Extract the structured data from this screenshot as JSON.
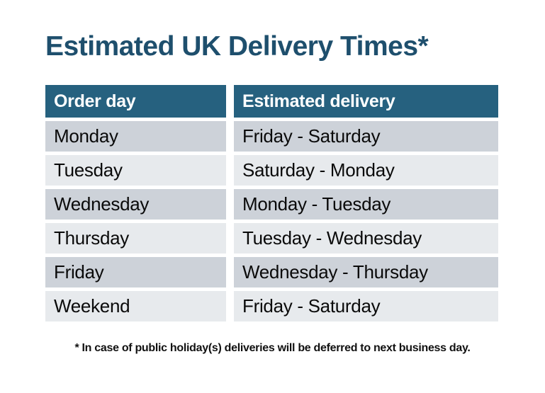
{
  "title": "Estimated UK Delivery Times*",
  "table": {
    "headers": [
      "Order day",
      "Estimated delivery"
    ],
    "rows": [
      [
        "Monday",
        "Friday - Saturday"
      ],
      [
        "Tuesday",
        "Saturday - Monday"
      ],
      [
        "Wednesday",
        "Monday - Tuesday"
      ],
      [
        "Thursday",
        "Tuesday - Wednesday"
      ],
      [
        "Friday",
        "Wednesday - Thursday"
      ],
      [
        "Weekend",
        "Friday - Saturday"
      ]
    ]
  },
  "footnote": "* In case of public holiday(s) deliveries will be deferred to next business day.",
  "colors": {
    "page_bg": "#FFFFFF",
    "title_text": "#1E4F6D",
    "header_bg": "#26617F",
    "header_text": "#FFFFFF",
    "row_odd_bg": "#CDD2D9",
    "row_even_bg": "#E7EAED",
    "row_text": "#0A0A0A",
    "footnote_text": "#111111"
  }
}
